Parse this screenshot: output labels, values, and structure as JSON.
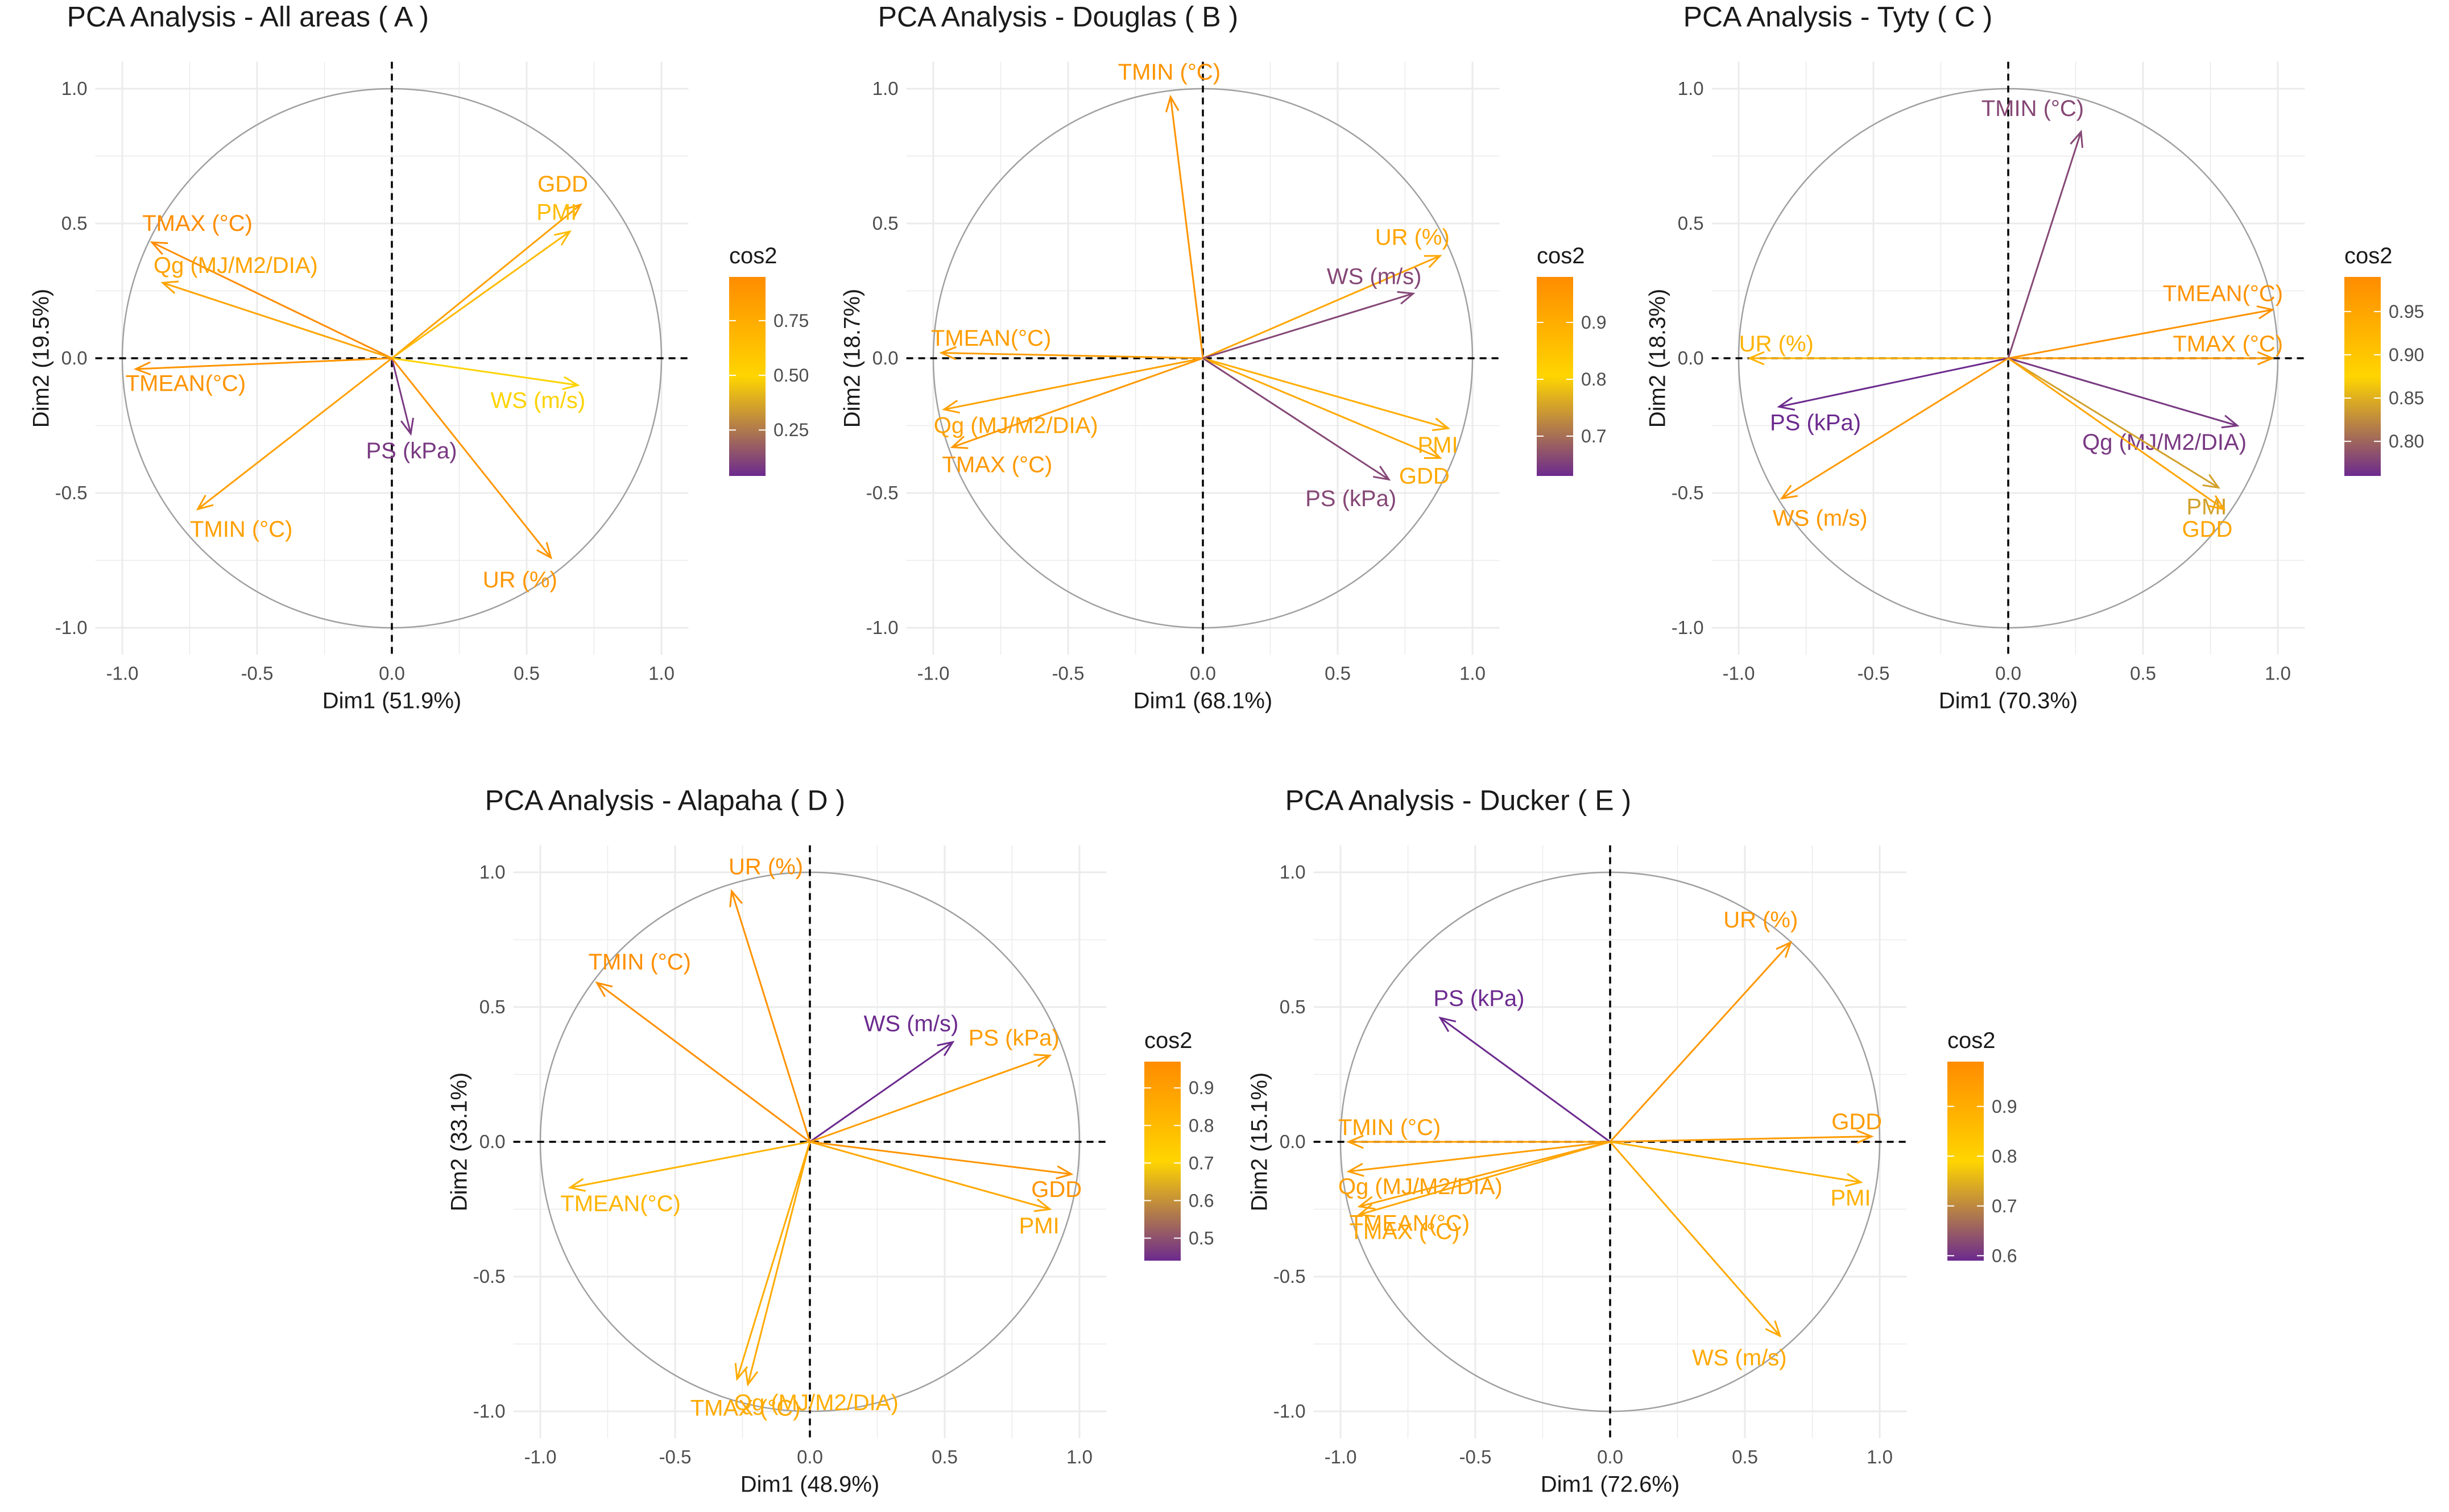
{
  "colors": {
    "background": "#ffffff",
    "grid": "#ebebeb",
    "circle": "#a0a0a0",
    "title": "#1a1a1a",
    "axis_label": "#1a1a1a",
    "tick": "#4d4d4d",
    "gradient_low": "#6c2a8e",
    "gradient_mid": "#ffd500",
    "gradient_high": "#ff8c00"
  },
  "chart_data": [
    {
      "type": "pca-variable-correlation-circle",
      "title": "PCA Analysis - All areas ( A )",
      "xlabel": "Dim1 (51.9%)",
      "ylabel": "Dim2 (19.5%)",
      "xlim": [
        -1.0,
        1.0
      ],
      "ylim": [
        -1.0,
        1.0
      ],
      "ticks": [
        -1.0,
        -0.5,
        0.0,
        0.5,
        1.0
      ],
      "x_tick_labels": [
        "-1.0",
        "-0.5",
        "0.0",
        "0.5",
        "1.0"
      ],
      "y_tick_labels": [
        "-1.0",
        "-0.5",
        "0.0",
        "0.5",
        "1.0"
      ],
      "legend": {
        "title": "cos2",
        "range": [
          0.04,
          0.95
        ],
        "ticks": [
          0.25,
          0.5,
          0.75
        ],
        "tick_labels": [
          "0.25",
          "0.50",
          "0.75"
        ]
      },
      "variables": [
        {
          "label": "GDD",
          "x": 0.7,
          "y": 0.57,
          "cos2": 0.82
        },
        {
          "label": "PMI",
          "x": 0.66,
          "y": 0.47,
          "cos2": 0.66
        },
        {
          "label": "TMAX (°C)",
          "x": -0.89,
          "y": 0.43,
          "cos2": 0.95
        },
        {
          "label": "Qg (MJ/M2/DIA)",
          "x": -0.85,
          "y": 0.28,
          "cos2": 0.8
        },
        {
          "label": "TMEAN(°C)",
          "x": -0.95,
          "y": -0.04,
          "cos2": 0.9
        },
        {
          "label": "WS (m/s)",
          "x": 0.69,
          "y": -0.1,
          "cos2": 0.49
        },
        {
          "label": "PS (kPa)",
          "x": 0.07,
          "y": -0.28,
          "cos2": 0.08
        },
        {
          "label": "TMIN (°C)",
          "x": -0.72,
          "y": -0.56,
          "cos2": 0.83
        },
        {
          "label": "UR (%)",
          "x": 0.59,
          "y": -0.74,
          "cos2": 0.89
        }
      ]
    },
    {
      "type": "pca-variable-correlation-circle",
      "title": "PCA Analysis - Douglas ( B )",
      "xlabel": "Dim1 (68.1%)",
      "ylabel": "Dim2 (18.7%)",
      "xlim": [
        -1.0,
        1.0
      ],
      "ylim": [
        -1.0,
        1.0
      ],
      "ticks": [
        -1.0,
        -0.5,
        0.0,
        0.5,
        1.0
      ],
      "x_tick_labels": [
        "-1.0",
        "-0.5",
        "0.0",
        "0.5",
        "1.0"
      ],
      "y_tick_labels": [
        "-1.0",
        "-0.5",
        "0.0",
        "0.5",
        "1.0"
      ],
      "legend": {
        "title": "cos2",
        "range": [
          0.63,
          0.98
        ],
        "ticks": [
          0.7,
          0.8,
          0.9
        ],
        "tick_labels": [
          "0.7",
          "0.8",
          "0.9"
        ]
      },
      "variables": [
        {
          "label": "TMIN (°C)",
          "x": -0.12,
          "y": 0.97,
          "cos2": 0.96
        },
        {
          "label": "UR (%)",
          "x": 0.88,
          "y": 0.38,
          "cos2": 0.92
        },
        {
          "label": "WS (m/s)",
          "x": 0.78,
          "y": 0.24,
          "cos2": 0.66
        },
        {
          "label": "TMEAN(°C)",
          "x": -0.97,
          "y": 0.02,
          "cos2": 0.94
        },
        {
          "label": "Qg (MJ/M2/DIA)",
          "x": -0.96,
          "y": -0.19,
          "cos2": 0.93
        },
        {
          "label": "TMAX (°C)",
          "x": -0.93,
          "y": -0.33,
          "cos2": 0.95
        },
        {
          "label": "PMI",
          "x": 0.91,
          "y": -0.26,
          "cos2": 0.9
        },
        {
          "label": "GDD",
          "x": 0.88,
          "y": -0.37,
          "cos2": 0.91
        },
        {
          "label": "PS (kPa)",
          "x": 0.69,
          "y": -0.45,
          "cos2": 0.66
        }
      ]
    },
    {
      "type": "pca-variable-correlation-circle",
      "title": "PCA Analysis - Tyty ( C )",
      "xlabel": "Dim1 (70.3%)",
      "ylabel": "Dim2 (18.3%)",
      "xlim": [
        -1.0,
        1.0
      ],
      "ylim": [
        -1.0,
        1.0
      ],
      "ticks": [
        -1.0,
        -0.5,
        0.0,
        0.5,
        1.0
      ],
      "x_tick_labels": [
        "-1.0",
        "-0.5",
        "0.0",
        "0.5",
        "1.0"
      ],
      "y_tick_labels": [
        "-1.0",
        "-0.5",
        "0.0",
        "0.5",
        "1.0"
      ],
      "legend": {
        "title": "cos2",
        "range": [
          0.76,
          0.99
        ],
        "ticks": [
          0.8,
          0.85,
          0.9,
          0.95
        ],
        "tick_labels": [
          "0.80",
          "0.85",
          "0.90",
          "0.95"
        ]
      },
      "variables": [
        {
          "label": "TMIN (°C)",
          "x": 0.27,
          "y": 0.84,
          "cos2": 0.78
        },
        {
          "label": "TMEAN(°C)",
          "x": 0.98,
          "y": 0.18,
          "cos2": 0.98
        },
        {
          "label": "TMAX (°C)",
          "x": 0.98,
          "y": 0.0,
          "cos2": 0.97
        },
        {
          "label": "UR (%)",
          "x": -0.96,
          "y": 0.0,
          "cos2": 0.93
        },
        {
          "label": "PS (kPa)",
          "x": -0.85,
          "y": -0.18,
          "cos2": 0.76
        },
        {
          "label": "Qg (MJ/M2/DIA)",
          "x": 0.85,
          "y": -0.25,
          "cos2": 0.77
        },
        {
          "label": "PMI",
          "x": 0.78,
          "y": -0.48,
          "cos2": 0.84
        },
        {
          "label": "GDD",
          "x": 0.8,
          "y": -0.56,
          "cos2": 0.95
        },
        {
          "label": "WS (m/s)",
          "x": -0.84,
          "y": -0.52,
          "cos2": 0.97
        }
      ]
    },
    {
      "type": "pca-variable-correlation-circle",
      "title": "PCA Analysis - Alapaha ( D )",
      "xlabel": "Dim1 (48.9%)",
      "ylabel": "Dim2 (33.1%)",
      "xlim": [
        -1.0,
        1.0
      ],
      "ylim": [
        -1.0,
        1.0
      ],
      "ticks": [
        -1.0,
        -0.5,
        0.0,
        0.5,
        1.0
      ],
      "x_tick_labels": [
        "-1.0",
        "-0.5",
        "0.0",
        "0.5",
        "1.0"
      ],
      "y_tick_labels": [
        "-1.0",
        "-0.5",
        "0.0",
        "0.5",
        "1.0"
      ],
      "legend": {
        "title": "cos2",
        "range": [
          0.44,
          0.97
        ],
        "ticks": [
          0.5,
          0.6,
          0.7,
          0.8,
          0.9
        ],
        "tick_labels": [
          "0.5",
          "0.6",
          "0.7",
          "0.8",
          "0.9"
        ]
      },
      "variables": [
        {
          "label": "UR (%)",
          "x": -0.29,
          "y": 0.93,
          "cos2": 0.95
        },
        {
          "label": "TMIN (°C)",
          "x": -0.79,
          "y": 0.59,
          "cos2": 0.96
        },
        {
          "label": "WS (m/s)",
          "x": 0.53,
          "y": 0.37,
          "cos2": 0.44
        },
        {
          "label": "PS (kPa)",
          "x": 0.89,
          "y": 0.32,
          "cos2": 0.91
        },
        {
          "label": "GDD",
          "x": 0.97,
          "y": -0.12,
          "cos2": 0.94
        },
        {
          "label": "PMI",
          "x": 0.89,
          "y": -0.25,
          "cos2": 0.87
        },
        {
          "label": "TMEAN(°C)",
          "x": -0.89,
          "y": -0.17,
          "cos2": 0.82
        },
        {
          "label": "Qg (MJ/M2/DIA)",
          "x": -0.27,
          "y": -0.88,
          "cos2": 0.85
        },
        {
          "label": "TMAX (°C)",
          "x": -0.23,
          "y": -0.9,
          "cos2": 0.86
        }
      ]
    },
    {
      "type": "pca-variable-correlation-circle",
      "title": "PCA Analysis - Ducker ( E )",
      "xlabel": "Dim1 (72.6%)",
      "ylabel": "Dim2 (15.1%)",
      "xlim": [
        -1.0,
        1.0
      ],
      "ylim": [
        -1.0,
        1.0
      ],
      "ticks": [
        -1.0,
        -0.5,
        0.0,
        0.5,
        1.0
      ],
      "x_tick_labels": [
        "-1.0",
        "-0.5",
        "0.0",
        "0.5",
        "1.0"
      ],
      "y_tick_labels": [
        "-1.0",
        "-0.5",
        "0.0",
        "0.5",
        "1.0"
      ],
      "legend": {
        "title": "cos2",
        "range": [
          0.59,
          0.99
        ],
        "ticks": [
          0.6,
          0.7,
          0.8,
          0.9
        ],
        "tick_labels": [
          "0.6",
          "0.7",
          "0.8",
          "0.9"
        ]
      },
      "variables": [
        {
          "label": "UR (%)",
          "x": 0.67,
          "y": 0.74,
          "cos2": 0.96
        },
        {
          "label": "PS (kPa)",
          "x": -0.63,
          "y": 0.46,
          "cos2": 0.59
        },
        {
          "label": "TMIN (°C)",
          "x": -0.97,
          "y": 0.0,
          "cos2": 0.94
        },
        {
          "label": "GDD",
          "x": 0.97,
          "y": 0.02,
          "cos2": 0.95
        },
        {
          "label": "PMI",
          "x": 0.93,
          "y": -0.15,
          "cos2": 0.89
        },
        {
          "label": "Qg (MJ/M2/DIA)",
          "x": -0.97,
          "y": -0.11,
          "cos2": 0.94
        },
        {
          "label": "TMEAN(°C)",
          "x": -0.93,
          "y": -0.24,
          "cos2": 0.93
        },
        {
          "label": "TMAX (°C)",
          "x": -0.93,
          "y": -0.27,
          "cos2": 0.92
        },
        {
          "label": "WS (m/s)",
          "x": 0.63,
          "y": -0.72,
          "cos2": 0.91
        }
      ]
    }
  ]
}
